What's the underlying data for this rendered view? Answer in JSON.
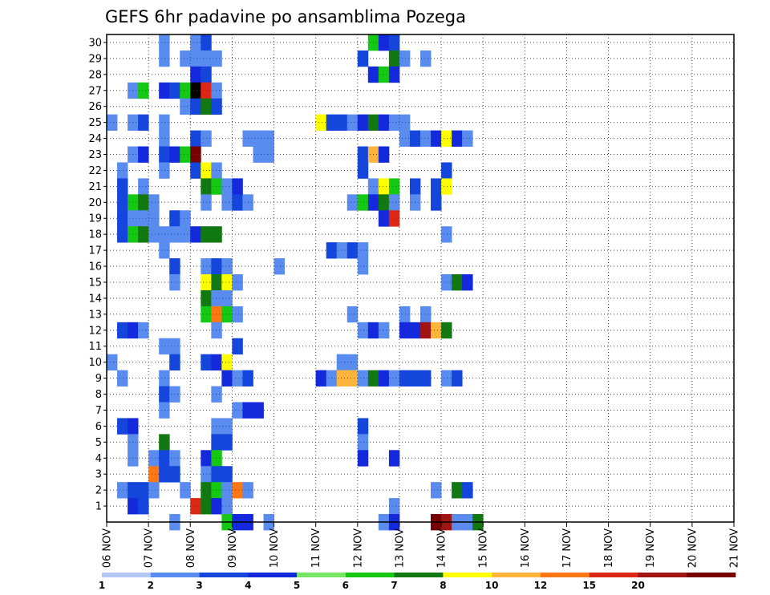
{
  "chart_data": {
    "type": "heatmap",
    "title": "GEFS 6hr padavine po ansamblima Pozega",
    "xlabel": "",
    "ylabel": "",
    "x_tick_labels": [
      "06 NOV",
      "07 NOV",
      "08 NOV",
      "09 NOV",
      "10 NOV",
      "11 NOV",
      "12 NOV",
      "13 NOV",
      "14 NOV",
      "15 NOV",
      "16 NOV",
      "17 NOV",
      "18 NOV",
      "19 NOV",
      "20 NOV",
      "21 NOV"
    ],
    "x_range": [
      0,
      60
    ],
    "y_tick_labels": [
      "1",
      "2",
      "3",
      "4",
      "5",
      "6",
      "7",
      "8",
      "9",
      "10",
      "11",
      "12",
      "13",
      "14",
      "15",
      "16",
      "17",
      "18",
      "19",
      "20",
      "21",
      "22",
      "23",
      "24",
      "25",
      "26",
      "27",
      "28",
      "29",
      "30"
    ],
    "y_range": [
      0,
      30.5
    ],
    "grid": true,
    "colorbar": {
      "labels": [
        "1",
        "2",
        "3",
        "4",
        "5",
        "6",
        "7",
        "8",
        "10",
        "12",
        "15",
        "20"
      ],
      "colors": [
        "#b4c8f5",
        "#5a8cf0",
        "#1446dc",
        "#1428dc",
        "#78e664",
        "#14c814",
        "#127812",
        "#ffff00",
        "#ffb43c",
        "#ff7814",
        "#dc2814",
        "#a01414",
        "#780000"
      ],
      "levels": [
        1,
        2,
        3,
        4,
        5,
        6,
        7,
        8,
        10,
        12,
        15,
        20
      ]
    },
    "cells": [
      [
        5,
        30,
        1
      ],
      [
        8,
        30,
        1
      ],
      [
        9,
        30,
        2
      ],
      [
        25,
        30,
        5
      ],
      [
        26,
        30,
        3
      ],
      [
        27,
        30,
        2
      ],
      [
        5,
        29,
        1
      ],
      [
        7,
        29,
        1
      ],
      [
        8,
        29,
        1
      ],
      [
        9,
        29,
        1
      ],
      [
        10,
        29,
        1
      ],
      [
        24,
        29,
        2
      ],
      [
        27,
        29,
        6
      ],
      [
        28,
        29,
        1
      ],
      [
        30,
        29,
        1
      ],
      [
        8,
        28,
        3
      ],
      [
        9,
        28,
        2
      ],
      [
        25,
        28,
        3
      ],
      [
        26,
        28,
        5
      ],
      [
        27,
        28,
        3
      ],
      [
        2,
        27,
        1
      ],
      [
        3,
        27,
        5
      ],
      [
        5,
        27,
        3
      ],
      [
        6,
        27,
        2
      ],
      [
        7,
        27,
        5
      ],
      [
        8,
        27,
        13
      ],
      [
        9,
        27,
        10
      ],
      [
        10,
        27,
        1
      ],
      [
        7,
        26,
        1
      ],
      [
        8,
        26,
        2
      ],
      [
        9,
        26,
        6
      ],
      [
        10,
        26,
        2
      ],
      [
        0,
        25,
        1
      ],
      [
        2,
        25,
        1
      ],
      [
        3,
        25,
        2
      ],
      [
        5,
        25,
        1
      ],
      [
        20,
        25,
        7
      ],
      [
        21,
        25,
        2
      ],
      [
        22,
        25,
        2
      ],
      [
        23,
        25,
        1
      ],
      [
        24,
        25,
        3
      ],
      [
        25,
        25,
        6
      ],
      [
        26,
        25,
        3
      ],
      [
        27,
        25,
        1
      ],
      [
        28,
        25,
        1
      ],
      [
        5,
        24,
        1
      ],
      [
        8,
        24,
        2
      ],
      [
        9,
        24,
        1
      ],
      [
        13,
        24,
        1
      ],
      [
        14,
        24,
        1
      ],
      [
        15,
        24,
        1
      ],
      [
        28,
        24,
        1
      ],
      [
        29,
        24,
        2
      ],
      [
        30,
        24,
        1
      ],
      [
        31,
        24,
        3
      ],
      [
        32,
        24,
        7
      ],
      [
        33,
        24,
        3
      ],
      [
        34,
        24,
        1
      ],
      [
        2,
        23,
        1
      ],
      [
        3,
        23,
        3
      ],
      [
        5,
        23,
        2
      ],
      [
        6,
        23,
        3
      ],
      [
        7,
        23,
        5
      ],
      [
        8,
        23,
        12
      ],
      [
        14,
        23,
        1
      ],
      [
        15,
        23,
        1
      ],
      [
        24,
        23,
        2
      ],
      [
        25,
        23,
        8
      ],
      [
        26,
        23,
        3
      ],
      [
        1,
        22,
        1
      ],
      [
        5,
        22,
        1
      ],
      [
        8,
        22,
        2
      ],
      [
        9,
        22,
        7
      ],
      [
        10,
        22,
        1
      ],
      [
        24,
        22,
        2
      ],
      [
        32,
        22,
        2
      ],
      [
        1,
        21,
        2
      ],
      [
        3,
        21,
        1
      ],
      [
        9,
        21,
        6
      ],
      [
        10,
        21,
        5
      ],
      [
        11,
        21,
        1
      ],
      [
        12,
        21,
        3
      ],
      [
        25,
        21,
        1
      ],
      [
        26,
        21,
        7
      ],
      [
        27,
        21,
        5
      ],
      [
        29,
        21,
        2
      ],
      [
        31,
        21,
        2
      ],
      [
        32,
        21,
        7
      ],
      [
        1,
        20,
        2
      ],
      [
        2,
        20,
        5
      ],
      [
        3,
        20,
        6
      ],
      [
        4,
        20,
        1
      ],
      [
        9,
        20,
        1
      ],
      [
        11,
        20,
        1
      ],
      [
        12,
        20,
        2
      ],
      [
        13,
        20,
        1
      ],
      [
        23,
        20,
        1
      ],
      [
        24,
        20,
        5
      ],
      [
        25,
        20,
        3
      ],
      [
        26,
        20,
        6
      ],
      [
        27,
        20,
        1
      ],
      [
        29,
        20,
        1
      ],
      [
        31,
        20,
        2
      ],
      [
        1,
        19,
        2
      ],
      [
        2,
        19,
        1
      ],
      [
        3,
        19,
        1
      ],
      [
        4,
        19,
        1
      ],
      [
        6,
        19,
        2
      ],
      [
        7,
        19,
        1
      ],
      [
        26,
        19,
        3
      ],
      [
        27,
        19,
        10
      ],
      [
        1,
        18,
        2
      ],
      [
        2,
        18,
        5
      ],
      [
        3,
        18,
        6
      ],
      [
        4,
        18,
        1
      ],
      [
        5,
        18,
        1
      ],
      [
        6,
        18,
        1
      ],
      [
        7,
        18,
        1
      ],
      [
        8,
        18,
        3
      ],
      [
        9,
        18,
        6
      ],
      [
        10,
        18,
        6
      ],
      [
        32,
        18,
        1
      ],
      [
        5,
        17,
        1
      ],
      [
        21,
        17,
        2
      ],
      [
        22,
        17,
        1
      ],
      [
        23,
        17,
        2
      ],
      [
        24,
        17,
        1
      ],
      [
        6,
        16,
        2
      ],
      [
        9,
        16,
        1
      ],
      [
        10,
        16,
        2
      ],
      [
        11,
        16,
        1
      ],
      [
        16,
        16,
        1
      ],
      [
        24,
        16,
        1
      ],
      [
        6,
        15,
        1
      ],
      [
        9,
        15,
        7
      ],
      [
        10,
        15,
        6
      ],
      [
        11,
        15,
        7
      ],
      [
        12,
        15,
        1
      ],
      [
        32,
        15,
        1
      ],
      [
        33,
        15,
        6
      ],
      [
        34,
        15,
        3
      ],
      [
        9,
        14,
        6
      ],
      [
        10,
        14,
        1
      ],
      [
        11,
        14,
        1
      ],
      [
        9,
        13,
        5
      ],
      [
        10,
        13,
        9
      ],
      [
        11,
        13,
        5
      ],
      [
        12,
        13,
        1
      ],
      [
        23,
        13,
        1
      ],
      [
        28,
        13,
        1
      ],
      [
        30,
        13,
        1
      ],
      [
        1,
        12,
        2
      ],
      [
        2,
        12,
        3
      ],
      [
        3,
        12,
        1
      ],
      [
        10,
        12,
        1
      ],
      [
        24,
        12,
        1
      ],
      [
        25,
        12,
        3
      ],
      [
        26,
        12,
        1
      ],
      [
        28,
        12,
        3
      ],
      [
        29,
        12,
        3
      ],
      [
        30,
        12,
        11
      ],
      [
        31,
        12,
        8
      ],
      [
        32,
        12,
        6
      ],
      [
        5,
        11,
        1
      ],
      [
        6,
        11,
        1
      ],
      [
        12,
        11,
        2
      ],
      [
        0,
        10,
        1
      ],
      [
        6,
        10,
        2
      ],
      [
        9,
        10,
        2
      ],
      [
        10,
        10,
        3
      ],
      [
        11,
        10,
        7
      ],
      [
        22,
        10,
        1
      ],
      [
        23,
        10,
        1
      ],
      [
        1,
        9,
        1
      ],
      [
        5,
        9,
        1
      ],
      [
        11,
        9,
        3
      ],
      [
        12,
        9,
        1
      ],
      [
        13,
        9,
        2
      ],
      [
        20,
        9,
        3
      ],
      [
        21,
        9,
        1
      ],
      [
        22,
        9,
        8
      ],
      [
        23,
        9,
        8
      ],
      [
        24,
        9,
        1
      ],
      [
        25,
        9,
        6
      ],
      [
        26,
        9,
        3
      ],
      [
        27,
        9,
        1
      ],
      [
        28,
        9,
        2
      ],
      [
        29,
        9,
        2
      ],
      [
        30,
        9,
        2
      ],
      [
        32,
        9,
        1
      ],
      [
        33,
        9,
        2
      ],
      [
        5,
        8,
        2
      ],
      [
        6,
        8,
        1
      ],
      [
        10,
        8,
        1
      ],
      [
        5,
        7,
        1
      ],
      [
        12,
        7,
        1
      ],
      [
        13,
        7,
        3
      ],
      [
        14,
        7,
        3
      ],
      [
        1,
        6,
        2
      ],
      [
        2,
        6,
        3
      ],
      [
        10,
        6,
        1
      ],
      [
        11,
        6,
        1
      ],
      [
        24,
        6,
        2
      ],
      [
        2,
        5,
        1
      ],
      [
        5,
        5,
        6
      ],
      [
        10,
        5,
        2
      ],
      [
        11,
        5,
        2
      ],
      [
        24,
        5,
        1
      ],
      [
        2,
        4,
        1
      ],
      [
        4,
        4,
        1
      ],
      [
        5,
        4,
        2
      ],
      [
        6,
        4,
        1
      ],
      [
        9,
        4,
        3
      ],
      [
        10,
        4,
        5
      ],
      [
        24,
        4,
        3
      ],
      [
        27,
        4,
        3
      ],
      [
        4,
        3,
        9
      ],
      [
        5,
        3,
        2
      ],
      [
        6,
        3,
        2
      ],
      [
        9,
        3,
        1
      ],
      [
        10,
        3,
        2
      ],
      [
        11,
        3,
        2
      ],
      [
        1,
        2,
        1
      ],
      [
        2,
        2,
        2
      ],
      [
        3,
        2,
        2
      ],
      [
        4,
        2,
        1
      ],
      [
        7,
        2,
        1
      ],
      [
        9,
        2,
        6
      ],
      [
        10,
        2,
        5
      ],
      [
        11,
        2,
        1
      ],
      [
        12,
        2,
        9
      ],
      [
        13,
        2,
        1
      ],
      [
        31,
        2,
        1
      ],
      [
        33,
        2,
        6
      ],
      [
        34,
        2,
        2
      ],
      [
        2,
        1,
        3
      ],
      [
        3,
        1,
        2
      ],
      [
        8,
        1,
        10
      ],
      [
        9,
        1,
        6
      ],
      [
        10,
        1,
        3
      ],
      [
        11,
        1,
        1
      ],
      [
        27,
        1,
        1
      ],
      [
        6,
        0,
        1
      ],
      [
        11,
        0,
        5
      ],
      [
        12,
        0,
        3
      ],
      [
        13,
        0,
        3
      ],
      [
        15,
        0,
        1
      ],
      [
        26,
        0,
        1
      ],
      [
        27,
        0,
        3
      ],
      [
        31,
        0,
        12
      ],
      [
        32,
        0,
        11
      ],
      [
        33,
        0,
        1
      ],
      [
        34,
        0,
        1
      ],
      [
        35,
        0,
        6
      ]
    ]
  }
}
